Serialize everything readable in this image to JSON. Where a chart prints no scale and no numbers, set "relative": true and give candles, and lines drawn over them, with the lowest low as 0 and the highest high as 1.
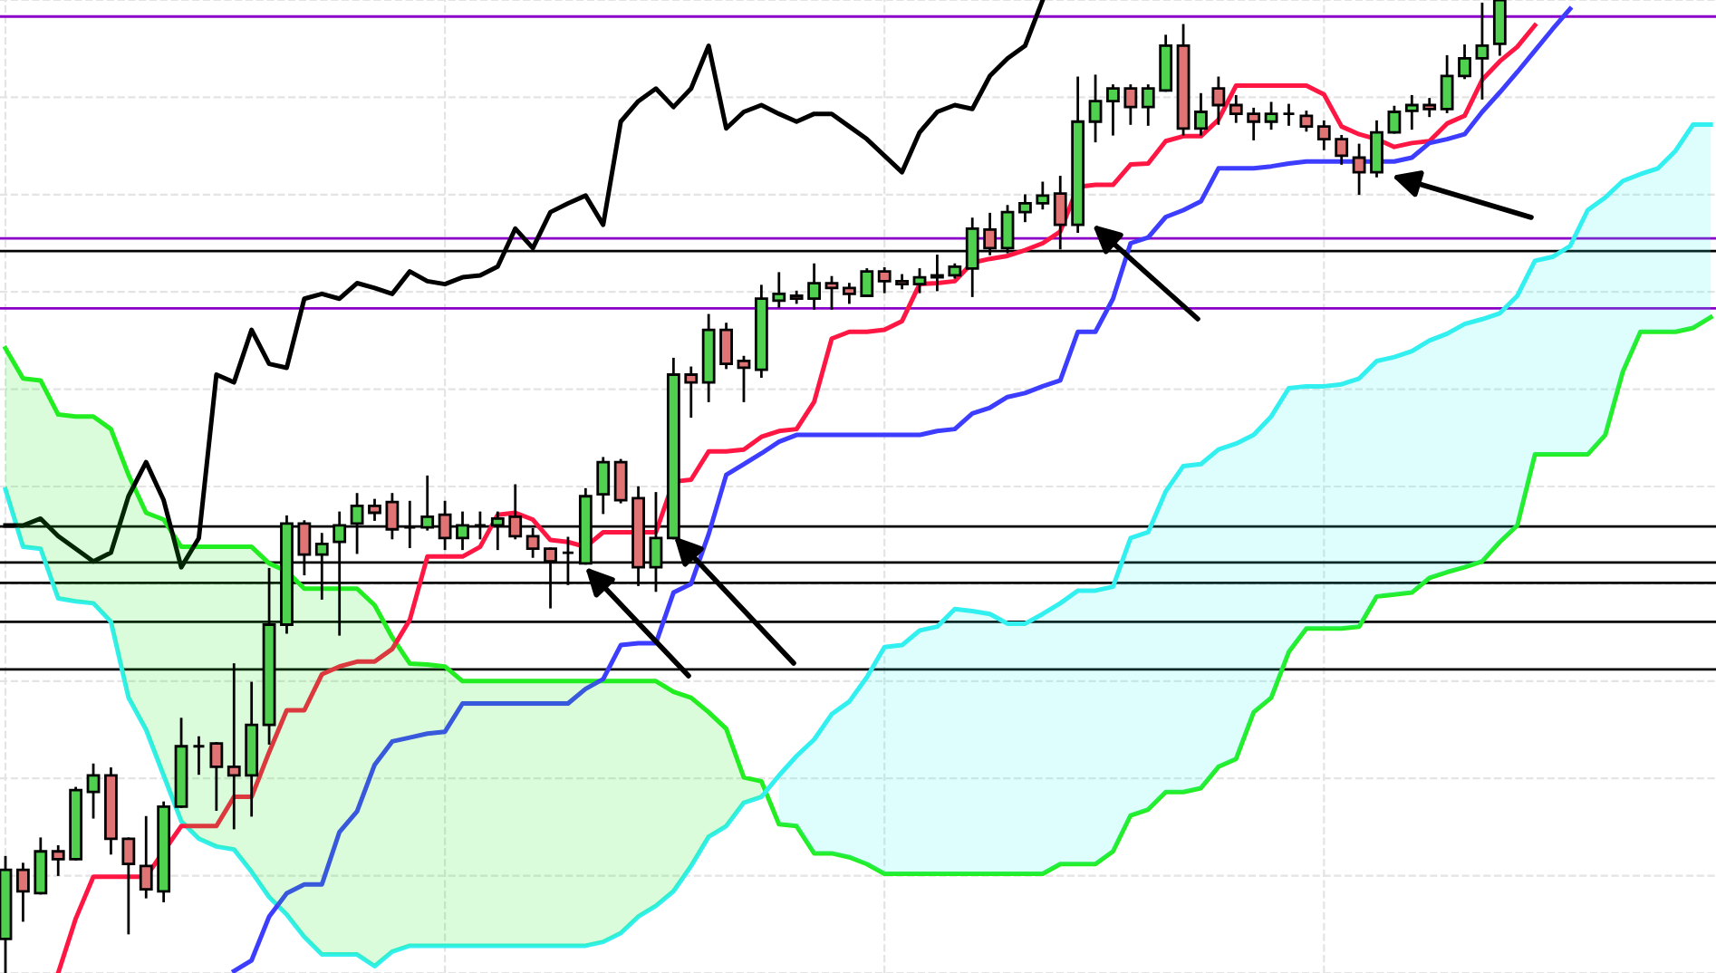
{
  "chart_data": {
    "type": "candlestick",
    "relative": true,
    "grid": true,
    "categories": [
      null,
      null,
      null,
      null,
      null,
      null,
      null,
      null,
      null,
      null,
      null,
      null,
      null,
      null,
      null,
      null,
      null,
      null,
      null,
      null,
      null,
      null,
      null,
      null,
      null,
      null,
      null,
      null,
      null,
      null,
      null,
      null,
      null,
      null,
      null,
      null,
      null,
      null,
      null,
      null,
      null,
      null,
      null,
      null,
      null,
      null,
      null,
      null,
      null,
      null,
      null,
      null,
      null,
      null,
      null,
      null,
      null,
      null,
      null,
      null,
      null,
      null,
      null,
      null,
      null,
      null,
      null,
      null,
      null,
      null,
      null,
      null,
      null,
      null,
      null,
      null,
      null,
      null,
      null,
      null,
      null,
      null,
      null,
      null,
      null,
      null,
      null,
      null,
      null,
      null,
      null,
      null,
      null,
      null,
      null,
      null,
      null,
      null
    ],
    "ohlc": [
      [
        0.035,
        0.119,
        0,
        0.106
      ],
      [
        0.106,
        0.112,
        0.054,
        0.084
      ],
      [
        0.082,
        0.138,
        0.082,
        0.125
      ],
      [
        0.125,
        0.13,
        0.101,
        0.117
      ],
      [
        0.117,
        0.19,
        0.117,
        0.188
      ],
      [
        0.186,
        0.214,
        0.16,
        0.203
      ],
      [
        0.203,
        0.21,
        0.123,
        0.138
      ],
      [
        0.138,
        0.138,
        0.041,
        0.112
      ],
      [
        0.11,
        0.16,
        0.078,
        0.086
      ],
      [
        0.084,
        0.175,
        0.074,
        0.171
      ],
      [
        0.171,
        0.261,
        0.171,
        0.233
      ],
      [
        0.233,
        0.242,
        0.205,
        0.233
      ],
      [
        0.236,
        0.236,
        0.168,
        0.212
      ],
      [
        0.212,
        0.317,
        0.149,
        0.203
      ],
      [
        0.203,
        0.298,
        0.162,
        0.255
      ],
      [
        0.255,
        0.415,
        0.236,
        0.358
      ],
      [
        0.358,
        0.469,
        0.35,
        0.462
      ],
      [
        0.462,
        0.464,
        0.41,
        0.43
      ],
      [
        0.43,
        0.451,
        0.385,
        0.441
      ],
      [
        0.443,
        0.473,
        0.348,
        0.46
      ],
      [
        0.462,
        0.492,
        0.432,
        0.48
      ],
      [
        0.48,
        0.486,
        0.466,
        0.473
      ],
      [
        0.484,
        0.492,
        0.447,
        0.456
      ],
      [
        0.458,
        0.484,
        0.438,
        0.458
      ],
      [
        0.458,
        0.51,
        0.456,
        0.469
      ],
      [
        0.471,
        0.484,
        0.436,
        0.447
      ],
      [
        0.447,
        0.473,
        0.436,
        0.46
      ],
      [
        0.46,
        0.473,
        0.447,
        0.46
      ],
      [
        0.46,
        0.473,
        0.436,
        0.467
      ],
      [
        0.469,
        0.501,
        0.447,
        0.449
      ],
      [
        0.449,
        0.456,
        0.428,
        0.436
      ],
      [
        0.436,
        0.436,
        0.376,
        0.423
      ],
      [
        0.432,
        0.447,
        0.4,
        0.432
      ],
      [
        0.421,
        0.497,
        0.421,
        0.49
      ],
      [
        0.492,
        0.529,
        0.473,
        0.525
      ],
      [
        0.525,
        0.527,
        0.484,
        0.486
      ],
      [
        0.488,
        0.499,
        0.399,
        0.417
      ],
      [
        0.417,
        0.493,
        0.393,
        0.447
      ],
      [
        0.447,
        0.631,
        0.447,
        0.615
      ],
      [
        0.615,
        0.622,
        0.572,
        0.607
      ],
      [
        0.607,
        0.676,
        0.588,
        0.661
      ],
      [
        0.661,
        0.667,
        0.622,
        0.626
      ],
      [
        0.629,
        0.633,
        0.588,
        0.622
      ],
      [
        0.62,
        0.706,
        0.613,
        0.693
      ],
      [
        0.691,
        0.719,
        0.685,
        0.698
      ],
      [
        0.696,
        0.7,
        0.689,
        0.693
      ],
      [
        0.693,
        0.728,
        0.683,
        0.709
      ],
      [
        0.709,
        0.715,
        0.683,
        0.704
      ],
      [
        0.704,
        0.708,
        0.689,
        0.698
      ],
      [
        0.696,
        0.723,
        0.696,
        0.721
      ],
      [
        0.721,
        0.724,
        0.7,
        0.711
      ],
      [
        0.711,
        0.717,
        0.704,
        0.708
      ],
      [
        0.708,
        0.723,
        0.7,
        0.715
      ],
      [
        0.715,
        0.737,
        0.702,
        0.717
      ],
      [
        0.717,
        0.728,
        0.715,
        0.726
      ],
      [
        0.724,
        0.775,
        0.696,
        0.765
      ],
      [
        0.764,
        0.78,
        0.739,
        0.745
      ],
      [
        0.745,
        0.788,
        0.741,
        0.782
      ],
      [
        0.782,
        0.799,
        0.773,
        0.791
      ],
      [
        0.791,
        0.812,
        0.786,
        0.799
      ],
      [
        0.801,
        0.818,
        0.745,
        0.769
      ],
      [
        0.769,
        0.92,
        0.762,
        0.875
      ],
      [
        0.875,
        0.922,
        0.855,
        0.896
      ],
      [
        0.896,
        0.912,
        0.862,
        0.909
      ],
      [
        0.909,
        0.912,
        0.873,
        0.89
      ],
      [
        0.89,
        0.912,
        0.872,
        0.909
      ],
      [
        0.907,
        0.963,
        0.907,
        0.953
      ],
      [
        0.953,
        0.974,
        0.862,
        0.868
      ],
      [
        0.868,
        0.903,
        0.862,
        0.885
      ],
      [
        0.909,
        0.92,
        0.873,
        0.892
      ],
      [
        0.892,
        0.901,
        0.875,
        0.883
      ],
      [
        0.883,
        0.888,
        0.857,
        0.875
      ],
      [
        0.875,
        0.894,
        0.868,
        0.883
      ],
      [
        0.883,
        0.892,
        0.872,
        0.883
      ],
      [
        0.881,
        0.885,
        0.866,
        0.87
      ],
      [
        0.87,
        0.875,
        0.847,
        0.857
      ],
      [
        0.857,
        0.86,
        0.832,
        0.84
      ],
      [
        0.838,
        0.851,
        0.801,
        0.823
      ],
      [
        0.823,
        0.875,
        0.819,
        0.864
      ],
      [
        0.864,
        0.89,
        0.864,
        0.885
      ],
      [
        0.886,
        0.901,
        0.868,
        0.892
      ],
      [
        0.892,
        0.898,
        0.881,
        0.888
      ],
      [
        0.888,
        0.942,
        0.885,
        0.922
      ],
      [
        0.922,
        0.953,
        0.92,
        0.94
      ],
      [
        0.94,
        0.996,
        0.899,
        0.953
      ],
      [
        0.955,
        1.0,
        0.944,
        1.0
      ],
      null,
      null,
      null,
      null,
      null,
      null,
      null,
      null,
      null,
      null,
      null,
      null
    ],
    "colors": [
      "#4fd14f",
      "#e07373",
      "#4fd14f",
      "#e07373",
      "#4fd14f",
      "#4fd14f",
      "#e07373",
      "#e07373",
      "#e07373",
      "#4fd14f",
      "#4fd14f",
      null,
      "#e07373",
      "#e07373",
      "#4fd14f",
      "#4fd14f",
      "#4fd14f",
      "#e07373",
      "#4fd14f",
      "#4fd14f",
      "#4fd14f",
      "#e07373",
      "#e07373",
      null,
      "#4fd14f",
      "#e07373",
      "#4fd14f",
      null,
      "#4fd14f",
      "#e07373",
      "#e07373",
      "#e07373",
      null,
      "#4fd14f",
      "#4fd14f",
      "#e07373",
      "#e07373",
      "#4fd14f",
      "#4fd14f",
      "#e07373",
      "#4fd14f",
      "#e07373",
      "#e07373",
      "#4fd14f",
      "#4fd14f",
      "#e07373",
      "#4fd14f",
      "#e07373",
      "#e07373",
      "#4fd14f",
      "#e07373",
      "#e07373",
      "#4fd14f",
      "#4fd14f",
      "#4fd14f",
      "#4fd14f",
      "#e07373",
      "#4fd14f",
      "#4fd14f",
      "#4fd14f",
      "#e07373",
      "#4fd14f",
      "#4fd14f",
      "#4fd14f",
      "#e07373",
      "#4fd14f",
      "#4fd14f",
      "#e07373",
      "#4fd14f",
      "#e07373",
      "#e07373",
      "#e07373",
      "#4fd14f",
      null,
      "#e07373",
      "#e07373",
      "#e07373",
      "#e07373",
      "#4fd14f",
      "#4fd14f",
      "#4fd14f",
      "#e07373",
      "#4fd14f",
      "#4fd14f",
      "#4fd14f",
      "#4fd14f",
      null,
      null,
      null,
      null,
      null,
      null,
      null,
      null,
      null,
      null,
      null,
      null
    ],
    "series": [
      {
        "type": "line",
        "color": "#22ee22",
        "values": [
          0.642,
          0.611,
          0.609,
          0.574,
          0.572,
          0.572,
          0.559,
          0.512,
          0.473,
          0.466,
          0.438,
          0.438,
          0.438,
          0.438,
          0.438,
          0.421,
          0.413,
          0.395,
          0.395,
          0.395,
          0.395,
          0.378,
          0.345,
          0.318,
          0.317,
          0.315,
          0.3,
          0.3,
          0.3,
          0.3,
          0.3,
          0.3,
          0.3,
          0.3,
          0.3,
          0.3,
          0.3,
          0.3,
          0.289,
          0.283,
          0.268,
          0.251,
          0.201,
          0.197,
          0.153,
          0.151,
          0.123,
          0.123,
          0.119,
          0.112,
          0.102,
          0.102,
          0.102,
          0.102,
          0.102,
          0.102,
          0.102,
          0.102,
          0.102,
          0.102,
          0.112,
          0.112,
          0.112,
          0.125,
          0.162,
          0.168,
          0.186,
          0.186,
          0.19,
          0.212,
          0.22,
          0.268,
          0.283,
          0.33,
          0.354,
          0.354,
          0.354,
          0.356,
          0.387,
          0.389,
          0.391,
          0.406,
          0.412,
          0.417,
          0.423,
          0.443,
          0.46,
          0.533,
          0.533,
          0.533,
          0.533,
          0.553,
          0.618,
          0.659,
          0.659,
          0.659,
          0.663,
          0.674
        ],
        "upper": [
          0.642,
          0.611,
          0.609,
          0.574,
          0.572,
          0.572,
          0.559,
          0.512,
          0.473,
          0.466,
          0.438,
          0.438,
          0.438,
          0.438,
          0.438,
          0.421,
          0.413,
          0.395,
          0.395,
          0.395,
          0.395,
          0.378,
          0.345,
          0.318,
          0.317,
          0.315,
          0.3,
          0.3,
          0.3,
          0.3,
          0.3,
          0.3,
          0.3,
          0.3,
          0.3,
          0.3,
          0.3,
          0.3,
          0.289,
          0.283,
          0.268,
          0.251,
          0.201,
          0.197,
          null,
          null,
          null,
          null,
          null,
          null,
          null,
          null,
          null,
          null,
          null,
          null,
          null,
          null,
          null,
          null,
          null,
          null,
          null,
          null,
          null,
          null,
          null,
          null,
          null,
          null,
          null,
          null,
          null,
          null,
          null,
          null,
          null,
          null,
          null,
          null,
          null,
          null,
          null,
          null,
          null,
          null,
          null,
          null,
          null,
          null,
          null,
          null,
          null,
          null,
          null,
          null,
          null,
          null
        ],
        "lower": [
          0.497,
          0.438,
          0.436,
          0.385,
          0.382,
          0.38,
          0.361,
          0.283,
          0.25,
          0.203,
          0.156,
          0.138,
          0.13,
          0.127,
          0.104,
          0.078,
          0.06,
          0.037,
          0.019,
          0.019,
          0.019,
          0.007,
          0.022,
          0.028,
          0.028,
          0.028,
          0.028,
          0.028,
          0.028,
          0.028,
          0.028,
          0.028,
          0.028,
          0.028,
          0.032,
          0.041,
          0.058,
          0.069,
          0.084,
          0.11,
          0.14,
          0.151,
          0.175,
          0.181,
          null,
          null,
          null,
          null,
          null,
          null,
          null,
          null,
          null,
          null,
          null,
          null,
          null,
          null,
          null,
          null,
          null,
          null,
          null,
          null,
          null,
          null,
          null,
          null,
          null,
          null,
          null,
          null,
          null,
          null,
          null,
          null,
          null,
          null,
          null,
          null,
          null,
          null,
          null,
          null,
          null,
          null,
          null,
          null,
          null,
          null,
          null,
          null,
          null,
          null,
          null,
          null,
          null,
          null
        ]
      },
      {
        "type": "line",
        "color": "#33f0f0",
        "values": [
          0.497,
          0.438,
          0.436,
          0.385,
          0.382,
          0.38,
          0.361,
          0.283,
          0.25,
          0.203,
          0.156,
          0.138,
          0.13,
          0.127,
          0.104,
          0.078,
          0.06,
          0.037,
          0.019,
          0.019,
          0.019,
          0.007,
          0.022,
          0.028,
          0.028,
          0.028,
          0.028,
          0.028,
          0.028,
          0.028,
          0.028,
          0.028,
          0.028,
          0.028,
          0.032,
          0.041,
          0.058,
          0.069,
          0.084,
          0.11,
          0.14,
          0.151,
          0.175,
          0.181,
          0.203,
          0.223,
          0.24,
          0.266,
          0.279,
          0.304,
          0.335,
          0.337,
          0.352,
          0.356,
          0.374,
          0.372,
          0.369,
          0.359,
          0.359,
          0.369,
          0.38,
          0.393,
          0.393,
          0.397,
          0.447,
          0.453,
          0.495,
          0.521,
          0.523,
          0.538,
          0.544,
          0.553,
          0.572,
          0.601,
          0.603,
          0.603,
          0.605,
          0.611,
          0.629,
          0.633,
          0.639,
          0.65,
          0.657,
          0.667,
          0.672,
          0.678,
          0.696,
          0.732,
          0.736,
          0.747,
          0.784,
          0.797,
          0.814,
          0.821,
          0.827,
          0.845,
          0.872,
          0.872
        ],
        "upper": [
          null,
          null,
          null,
          null,
          null,
          null,
          null,
          null,
          null,
          null,
          null,
          null,
          null,
          null,
          null,
          null,
          null,
          null,
          null,
          null,
          null,
          null,
          null,
          null,
          null,
          null,
          null,
          null,
          null,
          null,
          null,
          null,
          null,
          null,
          null,
          null,
          null,
          null,
          null,
          null,
          null,
          null,
          null,
          null,
          0.203,
          0.223,
          0.24,
          0.266,
          0.279,
          0.304,
          0.335,
          0.337,
          0.352,
          0.356,
          0.374,
          0.372,
          0.369,
          0.359,
          0.359,
          0.369,
          0.38,
          0.393,
          0.393,
          0.397,
          0.447,
          0.453,
          0.495,
          0.521,
          0.523,
          0.538,
          0.544,
          0.553,
          0.572,
          0.601,
          0.603,
          0.603,
          0.605,
          0.611,
          0.629,
          0.633,
          0.639,
          0.65,
          0.657,
          0.667,
          0.672,
          0.678,
          0.696,
          0.732,
          0.736,
          0.747,
          0.784,
          0.797,
          0.814,
          0.821,
          0.827,
          0.845,
          0.872,
          0.872
        ],
        "lower": [
          null,
          null,
          null,
          null,
          null,
          null,
          null,
          null,
          null,
          null,
          null,
          null,
          null,
          null,
          null,
          null,
          null,
          null,
          null,
          null,
          null,
          null,
          null,
          null,
          null,
          null,
          null,
          null,
          null,
          null,
          null,
          null,
          null,
          null,
          null,
          null,
          null,
          null,
          null,
          null,
          null,
          null,
          null,
          null,
          0.153,
          0.151,
          0.123,
          0.123,
          0.119,
          0.112,
          0.102,
          0.102,
          0.102,
          0.102,
          0.102,
          0.102,
          0.102,
          0.102,
          0.102,
          0.102,
          0.112,
          0.112,
          0.112,
          0.125,
          0.162,
          0.168,
          0.186,
          0.186,
          0.19,
          0.212,
          0.22,
          0.268,
          0.283,
          0.33,
          0.354,
          0.354,
          0.354,
          0.356,
          0.387,
          0.389,
          0.391,
          0.406,
          0.412,
          0.417,
          0.423,
          0.443,
          0.46,
          0.533,
          0.533,
          0.533,
          0.533,
          0.553,
          0.618,
          0.659,
          0.659,
          0.659,
          0.663,
          0.674
        ]
      },
      {
        "type": "line",
        "color": "#000000",
        "values": [
          0.46,
          0.46,
          0.467,
          0.449,
          0.436,
          0.423,
          0.432,
          0.49,
          0.525,
          0.486,
          0.417,
          0.447,
          0.615,
          0.607,
          0.661,
          0.626,
          0.622,
          0.693,
          0.698,
          0.693,
          0.709,
          0.704,
          0.698,
          0.721,
          0.711,
          0.708,
          0.715,
          0.717,
          0.726,
          0.765,
          0.745,
          0.782,
          0.791,
          0.799,
          0.769,
          0.875,
          0.896,
          0.909,
          0.89,
          0.909,
          0.953,
          0.868,
          0.885,
          0.892,
          0.883,
          0.875,
          0.883,
          0.883,
          0.87,
          0.857,
          0.84,
          0.823,
          0.864,
          0.885,
          0.892,
          0.888,
          0.922,
          0.94,
          0.953,
          1.0,
          null,
          null,
          null,
          null,
          null,
          null,
          null,
          null,
          null,
          null,
          null,
          null,
          null,
          null,
          null,
          null,
          null,
          null,
          null,
          null,
          null,
          null,
          null,
          null,
          null,
          null,
          null,
          null,
          null,
          null,
          null,
          null,
          null,
          null,
          null,
          null,
          null,
          null
        ]
      },
      {
        "type": "line",
        "color": "#ff1744",
        "values": [
          null,
          null,
          null,
          0.0,
          0.056,
          0.099,
          0.099,
          0.099,
          0.099,
          0.125,
          0.151,
          0.151,
          0.151,
          0.181,
          0.181,
          0.227,
          0.27,
          0.27,
          0.307,
          0.315,
          0.32,
          0.32,
          0.333,
          0.363,
          0.428,
          0.428,
          0.428,
          0.438,
          0.471,
          0.473,
          0.466,
          0.445,
          0.443,
          0.438,
          0.453,
          0.453,
          0.453,
          0.453,
          0.505,
          0.507,
          0.536,
          0.536,
          0.538,
          0.551,
          0.557,
          0.559,
          0.587,
          0.652,
          0.659,
          0.659,
          0.661,
          0.67,
          0.708,
          0.709,
          0.711,
          0.73,
          0.734,
          0.737,
          0.743,
          0.75,
          0.762,
          0.808,
          0.81,
          0.81,
          0.831,
          0.832,
          0.855,
          0.86,
          0.86,
          0.877,
          0.912,
          0.912,
          0.912,
          0.912,
          0.912,
          0.903,
          0.87,
          0.862,
          0.857,
          0.849,
          0.853,
          0.855,
          0.873,
          0.881,
          0.918,
          0.937,
          0.952,
          0.974,
          null,
          null,
          null,
          null,
          null,
          null,
          null,
          null,
          null,
          null
        ]
      },
      {
        "type": "line",
        "color": "#3d3dff",
        "values": [
          null,
          null,
          null,
          null,
          null,
          null,
          null,
          null,
          null,
          null,
          null,
          null,
          null,
          0.002,
          0.013,
          0.058,
          0.082,
          0.091,
          0.091,
          0.145,
          0.166,
          0.214,
          0.238,
          0.242,
          0.246,
          0.248,
          0.277,
          0.277,
          0.277,
          0.277,
          0.277,
          0.277,
          0.277,
          0.292,
          0.302,
          0.337,
          0.339,
          0.339,
          0.391,
          0.4,
          0.451,
          0.512,
          0.523,
          0.534,
          0.546,
          0.553,
          0.553,
          0.553,
          0.553,
          0.553,
          0.553,
          0.553,
          0.553,
          0.557,
          0.559,
          0.575,
          0.581,
          0.592,
          0.596,
          0.603,
          0.609,
          0.659,
          0.659,
          0.693,
          0.75,
          0.756,
          0.777,
          0.784,
          0.793,
          0.827,
          0.827,
          0.827,
          0.829,
          0.832,
          0.834,
          0.834,
          0.834,
          0.834,
          0.834,
          0.834,
          0.838,
          0.853,
          0.857,
          0.862,
          0.885,
          0.905,
          0.926,
          0.948,
          0.97,
          0.991,
          null,
          null,
          null,
          null,
          null,
          null,
          null,
          null
        ]
      }
    ],
    "ref_lines": [
      {
        "axis": "y",
        "value": 0.983,
        "color": "#8a00c8"
      },
      {
        "axis": "y",
        "value": 0.755,
        "color": "#8a00c8"
      },
      {
        "axis": "y",
        "value": 0.742,
        "color": "#000000"
      },
      {
        "axis": "y",
        "value": 0.683,
        "color": "#8a00c8"
      },
      {
        "axis": "y",
        "value": 0.459,
        "color": "#000000"
      },
      {
        "axis": "y",
        "value": 0.422,
        "color": "#000000"
      },
      {
        "axis": "y",
        "value": 0.401,
        "color": "#000000"
      },
      {
        "axis": "y",
        "value": 0.361,
        "color": "#000000"
      },
      {
        "axis": "y",
        "value": 0.312,
        "color": "#000000"
      }
    ]
  }
}
